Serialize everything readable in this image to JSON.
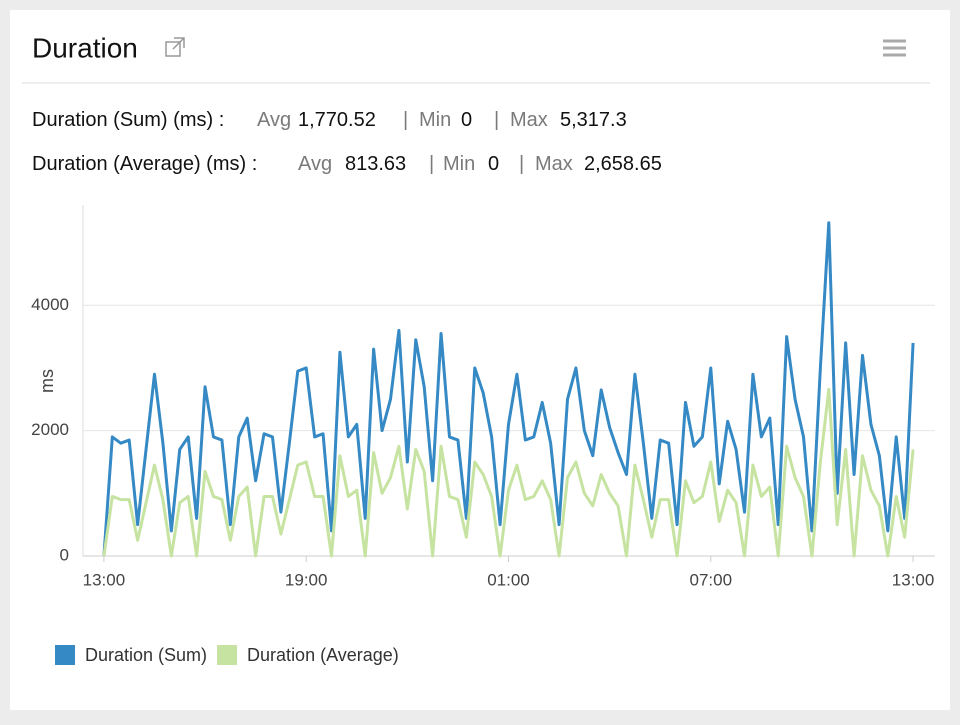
{
  "header": {
    "title": "Duration"
  },
  "stats": [
    {
      "label": "Duration (Sum) (ms) :",
      "avg_label": "Avg",
      "avg": "1,770.52",
      "min_label": "Min",
      "min": "0",
      "max_label": "Max",
      "max": "5,317.3"
    },
    {
      "label": "Duration (Average) (ms) :",
      "avg_label": "Avg",
      "avg": "813.63",
      "min_label": "Min",
      "min": "0",
      "max_label": "Max",
      "max": "2,658.65"
    }
  ],
  "chart_data": {
    "type": "line",
    "ylabel": "ms",
    "x": [
      0,
      0.25,
      0.5,
      0.75,
      1,
      1.25,
      1.5,
      1.75,
      2,
      2.25,
      2.5,
      2.75,
      3,
      3.25,
      3.5,
      3.75,
      4,
      4.25,
      4.5,
      4.75,
      5,
      5.25,
      5.5,
      5.75,
      6,
      6.25,
      6.5,
      6.75,
      7,
      7.25,
      7.5,
      7.75,
      8,
      8.25,
      8.5,
      8.75,
      9,
      9.25,
      9.5,
      9.75,
      10,
      10.25,
      10.5,
      10.75,
      11,
      11.25,
      11.5,
      11.75,
      12,
      12.25,
      12.5,
      12.75,
      13,
      13.25,
      13.5,
      13.75,
      14,
      14.25,
      14.5,
      14.75,
      15,
      15.25,
      15.5,
      15.75,
      16,
      16.25,
      16.5,
      16.75,
      17,
      17.25,
      17.5,
      17.75,
      18,
      18.25,
      18.5,
      18.75,
      19,
      19.25,
      19.5,
      19.75,
      20,
      20.25,
      20.5,
      20.75,
      21,
      21.25,
      21.5,
      21.75,
      22,
      22.25,
      22.5,
      22.75,
      23,
      23.25,
      23.5,
      23.75,
      24
    ],
    "series": [
      {
        "name": "Duration (Sum)",
        "color": "#3589c4",
        "values": [
          0,
          1900,
          1800,
          1850,
          500,
          1700,
          2900,
          1800,
          400,
          1700,
          1900,
          600,
          2700,
          1900,
          1850,
          500,
          1900,
          2200,
          1200,
          1950,
          1900,
          700,
          1800,
          2950,
          3000,
          1900,
          1950,
          400,
          3250,
          1900,
          2100,
          600,
          3300,
          2000,
          2500,
          3600,
          1500,
          3450,
          2700,
          1200,
          3550,
          1900,
          1850,
          600,
          3000,
          2600,
          1900,
          500,
          2100,
          2900,
          1850,
          1900,
          2450,
          1800,
          500,
          2500,
          3000,
          2000,
          1600,
          2650,
          2050,
          1650,
          1300,
          2900,
          1800,
          600,
          1850,
          1800,
          500,
          2450,
          1750,
          1900,
          3000,
          1150,
          2150,
          1700,
          700,
          2900,
          1900,
          2200,
          500,
          3500,
          2500,
          1900,
          400,
          3000,
          5317.3,
          1000,
          3400,
          1300,
          3200,
          2100,
          1600,
          400,
          1900,
          600,
          3400
        ]
      },
      {
        "name": "Duration (Average)",
        "color": "#c6e3a1",
        "values": [
          0,
          950,
          900,
          900,
          250,
          850,
          1450,
          900,
          0,
          850,
          950,
          0,
          1350,
          950,
          900,
          250,
          950,
          1100,
          0,
          950,
          950,
          350,
          900,
          1450,
          1500,
          950,
          950,
          0,
          1600,
          950,
          1050,
          0,
          1650,
          1000,
          1250,
          1750,
          750,
          1700,
          1350,
          0,
          1750,
          950,
          900,
          300,
          1500,
          1300,
          950,
          0,
          1050,
          1450,
          900,
          950,
          1200,
          900,
          0,
          1250,
          1500,
          1000,
          800,
          1300,
          1000,
          800,
          0,
          1450,
          900,
          300,
          900,
          900,
          0,
          1200,
          850,
          950,
          1500,
          550,
          1050,
          850,
          0,
          1450,
          950,
          1100,
          0,
          1750,
          1250,
          950,
          0,
          1500,
          2658.65,
          500,
          1700,
          0,
          1600,
          1050,
          800,
          0,
          950,
          300,
          1700
        ]
      }
    ],
    "xlim": [
      -0.62,
      24.65
    ],
    "xticks": [
      {
        "value": 0,
        "label": "13:00"
      },
      {
        "value": 6,
        "label": "19:00"
      },
      {
        "value": 12,
        "label": "01:00"
      },
      {
        "value": 18,
        "label": "07:00"
      },
      {
        "value": 24,
        "label": "13:00"
      }
    ],
    "ylim": [
      0,
      5600
    ],
    "yticks": [
      0,
      2000,
      4000
    ],
    "grid": true,
    "legend": "bottom-left"
  }
}
